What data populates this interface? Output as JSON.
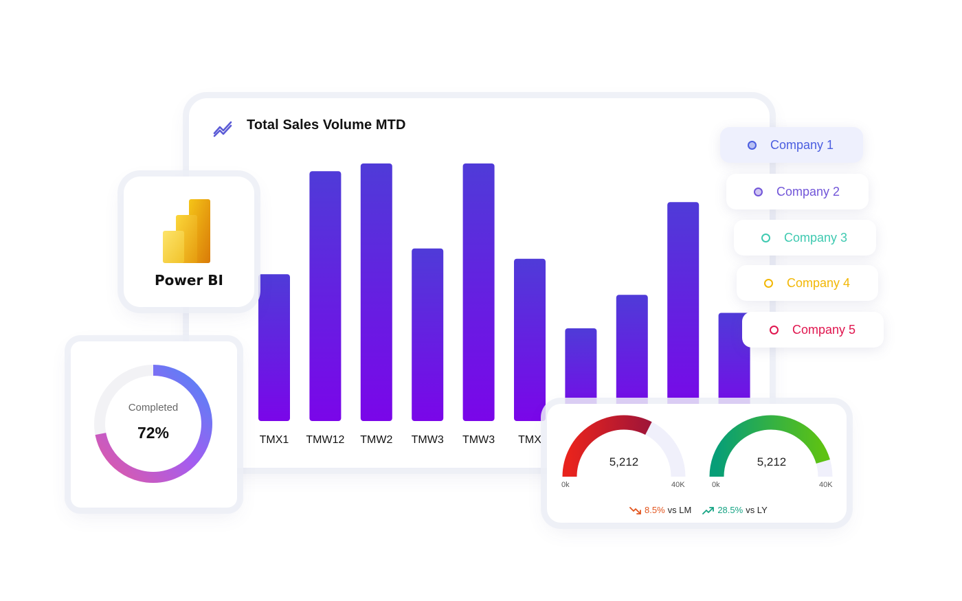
{
  "main": {
    "title": "Total Sales Volume MTD",
    "icon": "trend-line-icon"
  },
  "chart_data": {
    "type": "bar",
    "categories": [
      "TMX1",
      "TMW12",
      "TMW2",
      "TMW3",
      "TMW3",
      "TMX",
      "",
      "",
      "",
      ""
    ],
    "values": [
      57,
      97,
      100,
      67,
      100,
      63,
      36,
      49,
      85,
      42
    ],
    "ylim": [
      0,
      100
    ],
    "title": "Total Sales Volume MTD",
    "xlabel": "",
    "ylabel": "",
    "grid": false,
    "bar_gradient": [
      "#4f3bd8",
      "#7a06e9"
    ]
  },
  "powerbi": {
    "label": "Power BI",
    "icon": "power-bi-logo"
  },
  "donut": {
    "label": "Completed",
    "value_text": "72%",
    "value": 72,
    "track_color": "#f2f2f5",
    "gradient": [
      "#e05aa3",
      "#a45cf0",
      "#4f86f7"
    ]
  },
  "legend": [
    {
      "label": "Company 1",
      "color": "#4a5de0",
      "active": true
    },
    {
      "label": "Company 2",
      "color": "#7155d8",
      "active": false
    },
    {
      "label": "Company 3",
      "color": "#3ec9b0",
      "active": false
    },
    {
      "label": "Company 4",
      "color": "#f2b705",
      "active": false
    },
    {
      "label": "Company 5",
      "color": "#e0154e",
      "active": false
    }
  ],
  "gauges": [
    {
      "value_text": "5,212",
      "min": "0k",
      "max": "40K",
      "fill": 0.65,
      "colors": [
        "#e8231d",
        "#a01538"
      ]
    },
    {
      "value_text": "5,212",
      "min": "0k",
      "max": "40K",
      "fill": 0.91,
      "colors": [
        "#079e77",
        "#5ec213"
      ]
    }
  ],
  "comparisons": [
    {
      "value": "8.5%",
      "label": "vs LM",
      "direction": "down",
      "color": "#e2551e"
    },
    {
      "value": "28.5%",
      "label": "vs LY",
      "direction": "up",
      "color": "#14a383"
    }
  ]
}
